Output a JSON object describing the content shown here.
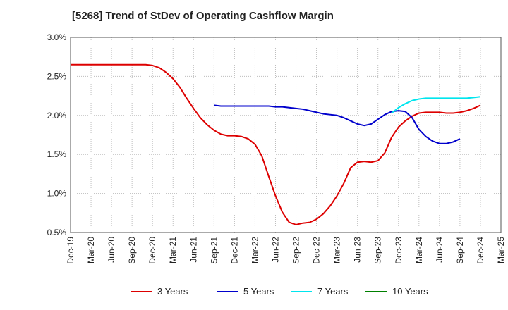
{
  "chart_data": {
    "type": "line",
    "title": "[5268]  Trend of StDev of Operating Cashflow Margin",
    "xlabel": "",
    "ylabel": "",
    "ylim": [
      0.5,
      3.0
    ],
    "y_ticks": [
      "0.5%",
      "1.0%",
      "1.5%",
      "2.0%",
      "2.5%",
      "3.0%"
    ],
    "y_tick_values": [
      0.5,
      1.0,
      1.5,
      2.0,
      2.5,
      3.0
    ],
    "x_ticks": [
      "Dec-19",
      "Mar-20",
      "Jun-20",
      "Sep-20",
      "Dec-20",
      "Mar-21",
      "Jun-21",
      "Sep-21",
      "Dec-21",
      "Mar-22",
      "Jun-22",
      "Sep-22",
      "Dec-22",
      "Mar-23",
      "Jun-23",
      "Sep-23",
      "Dec-23",
      "Mar-24",
      "Jun-24",
      "Sep-24",
      "Dec-24",
      "Mar-25"
    ],
    "grid": true,
    "legend_position": "bottom",
    "series": [
      {
        "name": "3 Years",
        "color": "#dd0000",
        "start_index": 0,
        "values": [
          2.65,
          2.65,
          2.65,
          2.65,
          2.65,
          2.65,
          2.65,
          2.65,
          2.65,
          2.65,
          2.65,
          2.65,
          2.64,
          2.61,
          2.55,
          2.47,
          2.36,
          2.22,
          2.09,
          1.97,
          1.88,
          1.81,
          1.76,
          1.74,
          1.74,
          1.73,
          1.7,
          1.63,
          1.48,
          1.22,
          0.97,
          0.76,
          0.63,
          0.6,
          0.62,
          0.63,
          0.67,
          0.74,
          0.84,
          0.97,
          1.13,
          1.33,
          1.4,
          1.41,
          1.4,
          1.42,
          1.52,
          1.72,
          1.85,
          1.93,
          1.99,
          2.03,
          2.04,
          2.04,
          2.04,
          2.03,
          2.03,
          2.04,
          2.06,
          2.09,
          2.13
        ]
      },
      {
        "name": "5 Years",
        "color": "#0000cc",
        "start_index": 21,
        "values": [
          2.13,
          2.12,
          2.12,
          2.12,
          2.12,
          2.12,
          2.12,
          2.12,
          2.12,
          2.11,
          2.11,
          2.1,
          2.09,
          2.08,
          2.06,
          2.04,
          2.02,
          2.01,
          2.0,
          1.97,
          1.93,
          1.89,
          1.87,
          1.89,
          1.95,
          2.01,
          2.05,
          2.06,
          2.05,
          1.97,
          1.82,
          1.73,
          1.67,
          1.64,
          1.64,
          1.66,
          1.7
        ]
      },
      {
        "name": "7 Years",
        "color": "#00e5ee",
        "start_index": 47,
        "values": [
          2.03,
          2.1,
          2.15,
          2.19,
          2.21,
          2.22,
          2.22,
          2.22,
          2.22,
          2.22,
          2.22,
          2.22,
          2.23,
          2.24
        ]
      },
      {
        "name": "10 Years",
        "color": "#008000",
        "start_index": 0,
        "values": []
      }
    ]
  }
}
